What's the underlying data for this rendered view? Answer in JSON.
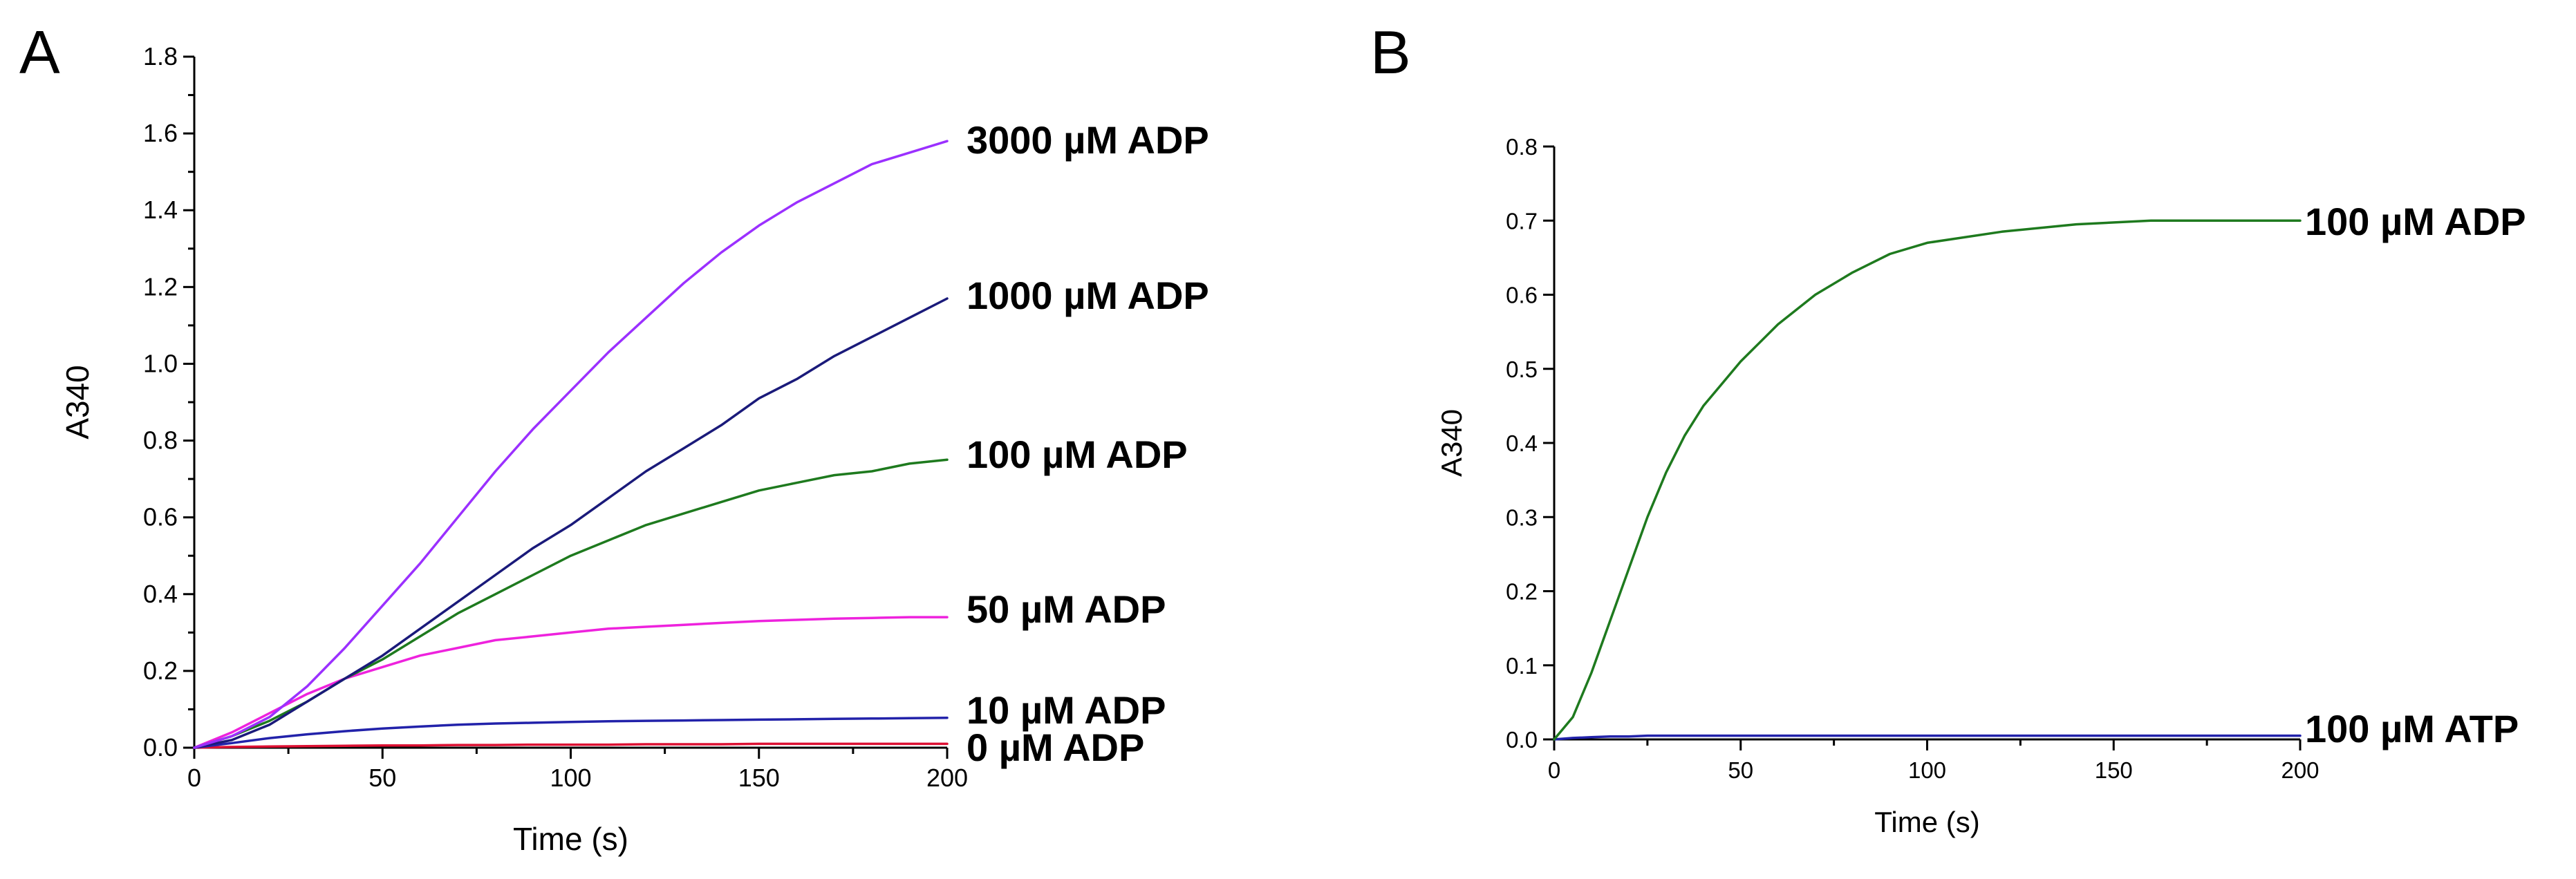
{
  "chart_data": [
    {
      "panel": "A",
      "type": "line",
      "title": "",
      "xlabel": "Time (s)",
      "ylabel": "A340",
      "xlim": [
        0,
        200
      ],
      "ylim": [
        0,
        1.8
      ],
      "xticks": [
        0,
        50,
        100,
        150,
        200
      ],
      "yticks": [
        0.0,
        0.2,
        0.4,
        0.6,
        0.8,
        1.0,
        1.2,
        1.4,
        1.6,
        1.8
      ],
      "ytick_labels": [
        "0.0",
        "0.2",
        "0.4",
        "0.6",
        "0.8",
        "1.0",
        "1.2",
        "1.4",
        "1.6",
        "1.8"
      ],
      "grid": false,
      "legend": "labels at end of each line",
      "x": [
        0,
        10,
        20,
        30,
        40,
        50,
        60,
        70,
        80,
        90,
        100,
        110,
        120,
        130,
        140,
        150,
        160,
        170,
        180,
        190,
        200
      ],
      "series": [
        {
          "name": "3000  µM ADP",
          "color": "#9b30ff",
          "values": [
            0.0,
            0.03,
            0.08,
            0.16,
            0.26,
            0.37,
            0.48,
            0.6,
            0.72,
            0.83,
            0.93,
            1.03,
            1.12,
            1.21,
            1.29,
            1.36,
            1.42,
            1.47,
            1.52,
            1.55,
            1.58
          ]
        },
        {
          "name": "1000  µM ADP",
          "color": "#1a1a7a",
          "values": [
            0.0,
            0.02,
            0.06,
            0.12,
            0.18,
            0.24,
            0.31,
            0.38,
            0.45,
            0.52,
            0.58,
            0.65,
            0.72,
            0.78,
            0.84,
            0.91,
            0.96,
            1.02,
            1.07,
            1.12,
            1.17
          ]
        },
        {
          "name": "100  µM ADP",
          "color": "#1e7a1e",
          "values": [
            0.0,
            0.03,
            0.07,
            0.12,
            0.18,
            0.23,
            0.29,
            0.35,
            0.4,
            0.45,
            0.5,
            0.54,
            0.58,
            0.61,
            0.64,
            0.67,
            0.69,
            0.71,
            0.72,
            0.74,
            0.75
          ]
        },
        {
          "name": "50  µM ADP",
          "color": "#ee22dd",
          "values": [
            0.0,
            0.04,
            0.09,
            0.14,
            0.18,
            0.21,
            0.24,
            0.26,
            0.28,
            0.29,
            0.3,
            0.31,
            0.315,
            0.32,
            0.325,
            0.33,
            0.333,
            0.336,
            0.338,
            0.34,
            0.34
          ]
        },
        {
          "name": "10 µM ADP",
          "color": "#2222aa",
          "values": [
            0.0,
            0.012,
            0.025,
            0.035,
            0.043,
            0.05,
            0.055,
            0.06,
            0.063,
            0.065,
            0.067,
            0.069,
            0.07,
            0.071,
            0.072,
            0.073,
            0.074,
            0.075,
            0.076,
            0.077,
            0.078
          ]
        },
        {
          "name": "0  µM ADP",
          "color": "#dd1133",
          "values": [
            0.0,
            0.002,
            0.003,
            0.004,
            0.005,
            0.006,
            0.006,
            0.007,
            0.007,
            0.008,
            0.008,
            0.008,
            0.009,
            0.009,
            0.009,
            0.01,
            0.01,
            0.01,
            0.01,
            0.01,
            0.01
          ]
        }
      ]
    },
    {
      "panel": "B",
      "type": "line",
      "title": "",
      "xlabel": "Time (s)",
      "ylabel": "A340",
      "xlim": [
        0,
        200
      ],
      "ylim": [
        0,
        0.8
      ],
      "xticks": [
        0,
        50,
        100,
        150,
        200
      ],
      "yticks": [
        0.0,
        0.1,
        0.2,
        0.3,
        0.4,
        0.5,
        0.6,
        0.7,
        0.8
      ],
      "ytick_labels": [
        "0.0",
        "0.1",
        "0.2",
        "0.3",
        "0.4",
        "0.5",
        "0.6",
        "0.7",
        "0.8"
      ],
      "grid": false,
      "legend": "labels at end of each line",
      "x": [
        0,
        5,
        10,
        15,
        20,
        25,
        30,
        35,
        40,
        45,
        50,
        60,
        70,
        80,
        90,
        100,
        120,
        140,
        160,
        180,
        200
      ],
      "series": [
        {
          "name": "100  µM ADP",
          "color": "#1e7a1e",
          "values": [
            0.0,
            0.03,
            0.09,
            0.16,
            0.23,
            0.3,
            0.36,
            0.41,
            0.45,
            0.48,
            0.51,
            0.56,
            0.6,
            0.63,
            0.655,
            0.67,
            0.685,
            0.695,
            0.7,
            0.7,
            0.7
          ]
        },
        {
          "name": "100  µM ATP",
          "color": "#2222aa",
          "values": [
            0.0,
            0.002,
            0.003,
            0.004,
            0.004,
            0.005,
            0.005,
            0.005,
            0.005,
            0.005,
            0.005,
            0.005,
            0.005,
            0.005,
            0.005,
            0.005,
            0.005,
            0.005,
            0.005,
            0.005,
            0.005
          ]
        }
      ]
    }
  ]
}
